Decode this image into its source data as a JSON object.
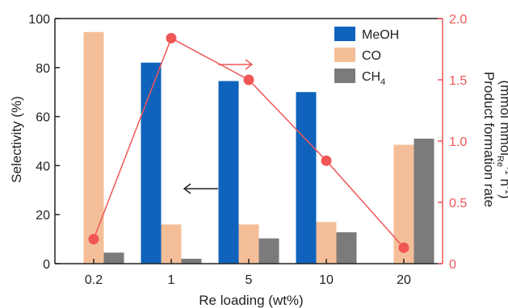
{
  "chart_data": {
    "type": "bar",
    "categories": [
      "0.2",
      "1",
      "5",
      "10",
      "20"
    ],
    "xlabel": "Re loading (wt%)",
    "ylabel": "Selectivity (%)",
    "ylim": [
      0,
      100
    ],
    "yticks": [
      "0",
      "20",
      "40",
      "60",
      "80",
      "100"
    ],
    "series": [
      {
        "name": "MeOH",
        "values": [
          0,
          82,
          74.5,
          70,
          0
        ],
        "color": "#0f63bd"
      },
      {
        "name": "CO",
        "values": [
          94.5,
          16,
          16,
          17,
          48.5
        ],
        "color": "#f4bf98"
      },
      {
        "name": "CH4",
        "values": [
          4.5,
          2,
          10.3,
          12.8,
          51
        ],
        "color": "#7b7b7b"
      }
    ],
    "secondary_axis": {
      "type": "line",
      "label_line1": "Product formation rate",
      "label_line2_parts": [
        "(mmol mmol",
        "Re",
        "-1",
        " h",
        "-1",
        ")"
      ],
      "ylim": [
        0,
        2.0
      ],
      "yticks": [
        "0",
        "0.5",
        "1.0",
        "1.5",
        "2.0"
      ],
      "values": [
        0.2,
        1.84,
        1.5,
        0.84,
        0.13
      ],
      "color": "#f05656"
    },
    "legend": {
      "placement": "top-right",
      "entries": [
        {
          "main": "MeOH",
          "sub": ""
        },
        {
          "main": "CO",
          "sub": ""
        },
        {
          "main": "CH",
          "sub": "4"
        }
      ]
    }
  }
}
